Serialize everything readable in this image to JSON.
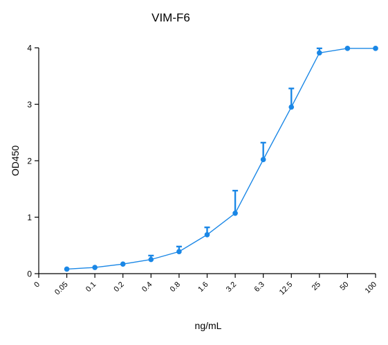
{
  "chart_data": {
    "type": "line",
    "title": "VIM-F6",
    "xlabel": "ng/mL",
    "ylabel": "OD450",
    "x_tick_labels": [
      "0",
      "0.05",
      "0.1",
      "0.2",
      "0.4",
      "0.8",
      "1.6",
      "3.2",
      "6.3",
      "12.5",
      "25",
      "50",
      "100"
    ],
    "y_tick_labels": [
      "0",
      "1",
      "2",
      "3",
      "4"
    ],
    "ylim": [
      0,
      4
    ],
    "grid": false,
    "legend": "none",
    "series": [
      {
        "color": "#1a87e6",
        "x": [
          "0.05",
          "0.1",
          "0.2",
          "0.4",
          "0.8",
          "1.6",
          "3.2",
          "6.3",
          "12.5",
          "25",
          "50",
          "100"
        ],
        "y": [
          0.08,
          0.11,
          0.17,
          0.25,
          0.39,
          0.69,
          1.07,
          2.02,
          2.95,
          3.91,
          3.99,
          3.99
        ],
        "error": [
          0.0,
          0.0,
          0.0,
          0.07,
          0.09,
          0.13,
          0.4,
          0.3,
          0.33,
          0.08,
          0.0,
          0.0
        ]
      }
    ]
  }
}
